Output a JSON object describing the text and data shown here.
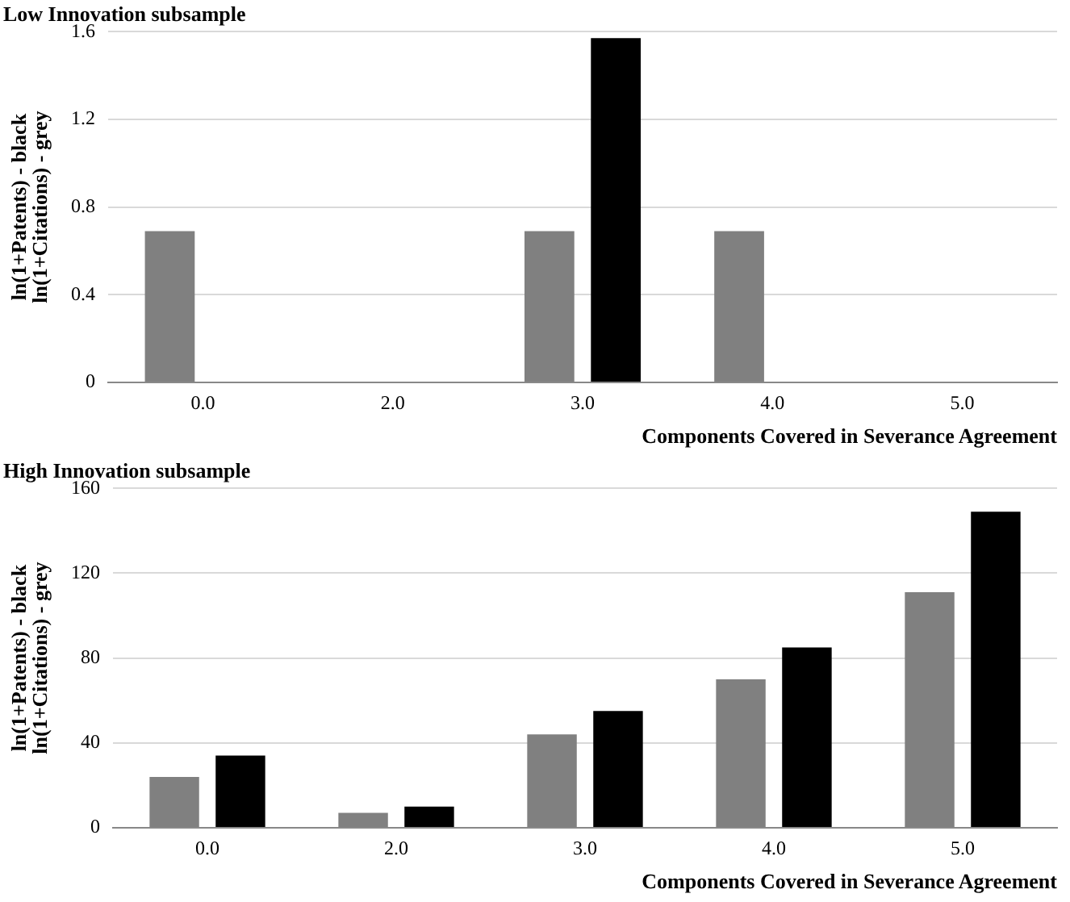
{
  "chart_data": [
    {
      "type": "bar",
      "title": "Low Innovation subsample",
      "xlabel": "Components Covered in Severance Agreement",
      "ylabel": "ln(1+Patents) - black\nln(1+Citations) - grey",
      "categories": [
        "0.0",
        "2.0",
        "3.0",
        "4.0",
        "5.0"
      ],
      "series": [
        {
          "color": "#808080",
          "values": [
            0.69,
            0,
            0.69,
            0.69,
            0
          ]
        },
        {
          "color": "#000000",
          "values": [
            0,
            0,
            1.57,
            0,
            0
          ]
        }
      ],
      "ylim": [
        0,
        1.6
      ],
      "yticks": [
        {
          "value": 0,
          "label": "0"
        },
        {
          "value": 0.4,
          "label": "0.4"
        },
        {
          "value": 0.8,
          "label": "0.8"
        },
        {
          "value": 1.2,
          "label": "1.2"
        },
        {
          "value": 1.6,
          "label": "1.6"
        }
      ],
      "grid": "y",
      "legend": false
    },
    {
      "type": "bar",
      "title": "High Innovation subsample",
      "xlabel": "Components Covered in Severance Agreement",
      "ylabel": "ln(1+Patents) - black\nln(1+Citations) - grey",
      "categories": [
        "0.0",
        "2.0",
        "3.0",
        "4.0",
        "5.0"
      ],
      "series": [
        {
          "color": "#808080",
          "values": [
            24,
            7,
            44,
            70,
            111
          ]
        },
        {
          "color": "#000000",
          "values": [
            34,
            10,
            55,
            85,
            149
          ]
        }
      ],
      "ylim": [
        0,
        160
      ],
      "yticks": [
        0,
        40,
        80,
        120,
        160
      ],
      "grid": "y",
      "legend": false
    }
  ]
}
